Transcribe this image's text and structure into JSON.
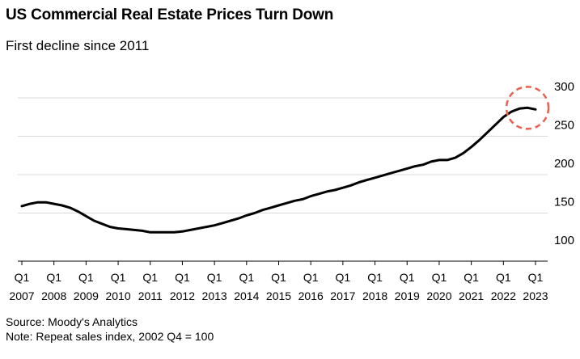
{
  "chart_data": {
    "type": "line",
    "title": "US Commercial Real Estate Prices Turn Down",
    "subtitle": "First decline since 2011",
    "source": "Source: Moody's Analytics",
    "note": "Note: Repeat sales index, 2002 Q4 = 100",
    "y_ticks": [
      "300",
      "250",
      "200",
      "150",
      "100"
    ],
    "y_tick_values": [
      300,
      250,
      200,
      150,
      100
    ],
    "ylim": [
      95,
      310
    ],
    "x_ticks": [
      {
        "q": "Q1",
        "year": "2007"
      },
      {
        "q": "Q1",
        "year": "2008"
      },
      {
        "q": "Q1",
        "year": "2009"
      },
      {
        "q": "Q1",
        "year": "2010"
      },
      {
        "q": "Q1",
        "year": "2011"
      },
      {
        "q": "Q1",
        "year": "2012"
      },
      {
        "q": "Q1",
        "year": "2013"
      },
      {
        "q": "Q1",
        "year": "2014"
      },
      {
        "q": "Q1",
        "year": "2015"
      },
      {
        "q": "Q1",
        "year": "2016"
      },
      {
        "q": "Q1",
        "year": "2017"
      },
      {
        "q": "Q1",
        "year": "2018"
      },
      {
        "q": "Q1",
        "year": "2019"
      },
      {
        "q": "Q1",
        "year": "2020"
      },
      {
        "q": "Q1",
        "year": "2021"
      },
      {
        "q": "Q1",
        "year": "2022"
      },
      {
        "q": "Q1",
        "year": "2023"
      }
    ],
    "grid": true,
    "highlight_color": "#e8614f",
    "line_color": "#000000",
    "series": [
      {
        "x": [
          2007.0,
          2007.25,
          2007.5,
          2007.75,
          2008.0,
          2008.25,
          2008.5,
          2008.75,
          2009.0,
          2009.25,
          2009.5,
          2009.75,
          2010.0,
          2010.25,
          2010.5,
          2010.75,
          2011.0,
          2011.25,
          2011.5,
          2011.75,
          2012.0,
          2012.25,
          2012.5,
          2012.75,
          2013.0,
          2013.25,
          2013.5,
          2013.75,
          2014.0,
          2014.25,
          2014.5,
          2014.75,
          2015.0,
          2015.25,
          2015.5,
          2015.75,
          2016.0,
          2016.25,
          2016.5,
          2016.75,
          2017.0,
          2017.25,
          2017.5,
          2017.75,
          2018.0,
          2018.25,
          2018.5,
          2018.75,
          2019.0,
          2019.25,
          2019.5,
          2019.75,
          2020.0,
          2020.25,
          2020.5,
          2020.75,
          2021.0,
          2021.25,
          2021.5,
          2021.75,
          2022.0,
          2022.25,
          2022.5,
          2022.75,
          2023.0
        ],
        "values": [
          159,
          162,
          164,
          164,
          162,
          160,
          157,
          152,
          146,
          140,
          136,
          132,
          130,
          129,
          128,
          127,
          125,
          125,
          125,
          125,
          126,
          128,
          130,
          132,
          134,
          137,
          140,
          143,
          147,
          150,
          154,
          157,
          160,
          163,
          166,
          168,
          172,
          175,
          178,
          180,
          183,
          186,
          190,
          193,
          196,
          199,
          202,
          205,
          208,
          211,
          213,
          217,
          219,
          219,
          222,
          228,
          236,
          245,
          255,
          265,
          275,
          282,
          286,
          287,
          285
        ]
      }
    ]
  }
}
